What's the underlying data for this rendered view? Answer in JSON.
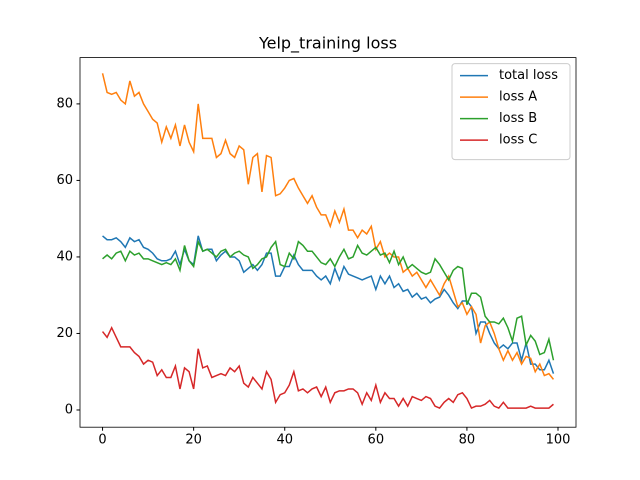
{
  "chart_data": {
    "type": "line",
    "title": "Yelp_training loss",
    "x": [
      0,
      1,
      2,
      3,
      4,
      5,
      6,
      7,
      8,
      9,
      10,
      11,
      12,
      13,
      14,
      15,
      16,
      17,
      18,
      19,
      20,
      21,
      22,
      23,
      24,
      25,
      26,
      27,
      28,
      29,
      30,
      31,
      32,
      33,
      34,
      35,
      36,
      37,
      38,
      39,
      40,
      41,
      42,
      43,
      44,
      45,
      46,
      47,
      48,
      49,
      50,
      51,
      52,
      53,
      54,
      55,
      56,
      57,
      58,
      59,
      60,
      61,
      62,
      63,
      64,
      65,
      66,
      67,
      68,
      69,
      70,
      71,
      72,
      73,
      74,
      75,
      76,
      77,
      78,
      79,
      80,
      81,
      82,
      83,
      84,
      85,
      86,
      87,
      88,
      89,
      90,
      91,
      92,
      93,
      94,
      95,
      96,
      97,
      98,
      99
    ],
    "series": [
      {
        "name": "total loss",
        "color": "#1f77b4",
        "values": [
          45.5,
          44.5,
          44.5,
          45,
          44,
          42.5,
          45,
          44,
          44.5,
          42.5,
          42,
          41,
          39.5,
          39,
          39,
          39.5,
          41.5,
          38,
          42,
          39,
          38,
          45.5,
          41.5,
          42,
          42,
          39,
          40.5,
          41.5,
          40,
          40,
          39,
          36,
          37,
          38,
          36.5,
          38,
          41,
          41,
          35,
          35,
          37.5,
          37.5,
          40.5,
          38,
          36.5,
          36.5,
          36.5,
          35,
          34,
          35,
          33,
          37,
          34,
          37.5,
          35.5,
          35,
          34.5,
          34,
          34.5,
          35,
          31.5,
          35,
          33,
          35,
          32,
          33,
          31,
          31.5,
          29.5,
          30.5,
          29,
          29.5,
          28,
          29,
          29.5,
          31.5,
          30,
          28,
          26.5,
          28.5,
          28.5,
          27,
          20,
          23,
          23,
          20,
          17.5,
          16,
          17,
          16,
          17.5,
          17.5,
          13,
          17.5,
          12,
          12,
          10.5,
          10.5,
          13,
          9.5
        ]
      },
      {
        "name": "loss A",
        "color": "#ff7f0e",
        "values": [
          88,
          83,
          82.5,
          83,
          81,
          80,
          86,
          82,
          83,
          80,
          78,
          76,
          75,
          70,
          74,
          71,
          74.5,
          69,
          74.5,
          70,
          67.5,
          80,
          71,
          71,
          71,
          66,
          67,
          70.5,
          67,
          66,
          69,
          68,
          59,
          66,
          67,
          57,
          66.5,
          66,
          56,
          56.5,
          58,
          60,
          60.5,
          58,
          56,
          54,
          56,
          53,
          51,
          51,
          48,
          52,
          49,
          52.5,
          47,
          47,
          45,
          47,
          46,
          48,
          42,
          44,
          40,
          41,
          40,
          40,
          36,
          37,
          35,
          36,
          34,
          32,
          34,
          32,
          30,
          33,
          35,
          31,
          27,
          28,
          25,
          27,
          25,
          17.5,
          22,
          23,
          20,
          16,
          13,
          15.5,
          13,
          15,
          12,
          14,
          13.5,
          10,
          12,
          9,
          9.5,
          8
        ]
      },
      {
        "name": "loss B",
        "color": "#2ca02c",
        "values": [
          39.5,
          40.5,
          39.5,
          41,
          41.5,
          39,
          41.5,
          40.5,
          41,
          39.5,
          39.5,
          39,
          38.5,
          38,
          38.5,
          38,
          39.5,
          36.5,
          43,
          39,
          37.5,
          44,
          41.5,
          42,
          41,
          40,
          41.5,
          42,
          40,
          41,
          41.5,
          40.5,
          40,
          37,
          38,
          39.5,
          40,
          42.5,
          44,
          38,
          37.5,
          41,
          39.5,
          44,
          43,
          41.5,
          41.5,
          40,
          38.5,
          38,
          39.5,
          37.5,
          40,
          42,
          39.5,
          40,
          43,
          41,
          40.5,
          41.5,
          42.5,
          40.5,
          41,
          38.5,
          41.5,
          38,
          40,
          37,
          38,
          37,
          36,
          35.5,
          36,
          39.5,
          38,
          36,
          34,
          36.5,
          37.5,
          37,
          27.5,
          30.5,
          30.5,
          29.5,
          24.5,
          23,
          23,
          22.5,
          24,
          21.5,
          18,
          24,
          24.5,
          17,
          19.5,
          18,
          14.5,
          15,
          18.5,
          13
        ]
      },
      {
        "name": "loss C",
        "color": "#d62728",
        "values": [
          20.5,
          19,
          21.5,
          19,
          16.5,
          16.5,
          16.5,
          15,
          14,
          12,
          13,
          12.5,
          9,
          10.5,
          8.5,
          8.5,
          11.5,
          5.5,
          11,
          10,
          5.5,
          16,
          11,
          11.5,
          8.5,
          9,
          9.5,
          9,
          11,
          10,
          11.5,
          7,
          6,
          8.5,
          7,
          5.5,
          10,
          8,
          2,
          4,
          4.5,
          6.5,
          10,
          5,
          5.5,
          4.5,
          5.5,
          6,
          3.5,
          6,
          2,
          4.5,
          5,
          5,
          5.5,
          5.5,
          4.5,
          1.5,
          4.5,
          2.5,
          6.5,
          2,
          4.5,
          3,
          3,
          1,
          3,
          1,
          3.5,
          3,
          2.5,
          3.5,
          3,
          1,
          0.5,
          2,
          3,
          2,
          4,
          4.5,
          3,
          0.5,
          1,
          1,
          1.5,
          2.5,
          1,
          0.5,
          2,
          0.5,
          0.5,
          0.5,
          0.5,
          0.5,
          1,
          0.5,
          0.5,
          0.5,
          0.5,
          1.5
        ]
      }
    ],
    "xlim": [
      -4.95,
      103.95
    ],
    "xticks": [
      0,
      20,
      40,
      60,
      80,
      100
    ],
    "ylim": [
      -4.5,
      92.1
    ],
    "yticks": [
      0,
      20,
      40,
      60,
      80
    ],
    "legend": "upper right"
  }
}
